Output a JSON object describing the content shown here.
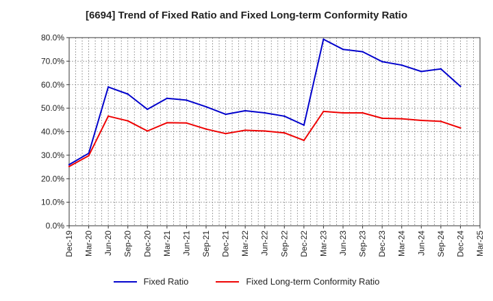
{
  "chart_data": {
    "type": "line",
    "title": "[6694]  Trend of Fixed Ratio and Fixed Long-term Conformity Ratio",
    "xlabel": "",
    "ylabel": "",
    "ylim": [
      0,
      80
    ],
    "yticks": [
      "0.0%",
      "10.0%",
      "20.0%",
      "30.0%",
      "40.0%",
      "50.0%",
      "60.0%",
      "70.0%",
      "80.0%"
    ],
    "x": [
      "Dec-19",
      "Mar-20",
      "Jun-20",
      "Sep-20",
      "Dec-20",
      "Mar-21",
      "Jun-21",
      "Sep-21",
      "Dec-21",
      "Mar-22",
      "Jun-22",
      "Sep-22",
      "Dec-22",
      "Mar-23",
      "Jun-23",
      "Sep-23",
      "Dec-23",
      "Mar-24",
      "Jun-24",
      "Sep-24",
      "Dec-24",
      "Mar-25"
    ],
    "grid": true,
    "legend_position": "bottom",
    "series": [
      {
        "name": "Fixed Ratio",
        "color": "#0000cc",
        "values": [
          26.0,
          30.8,
          59.0,
          56.0,
          49.5,
          54.2,
          53.4,
          50.6,
          47.4,
          48.9,
          48.0,
          46.6,
          42.8,
          79.3,
          75.0,
          74.0,
          69.8,
          68.3,
          65.6,
          66.7,
          59.3,
          null
        ]
      },
      {
        "name": "Fixed Long-term Conformity Ratio",
        "color": "#ee0000",
        "values": [
          25.2,
          29.8,
          46.6,
          44.6,
          40.3,
          43.8,
          43.7,
          41.1,
          39.2,
          40.6,
          40.3,
          39.5,
          36.3,
          48.6,
          48.0,
          48.0,
          45.7,
          45.5,
          44.8,
          44.4,
          41.6,
          null
        ]
      }
    ]
  }
}
